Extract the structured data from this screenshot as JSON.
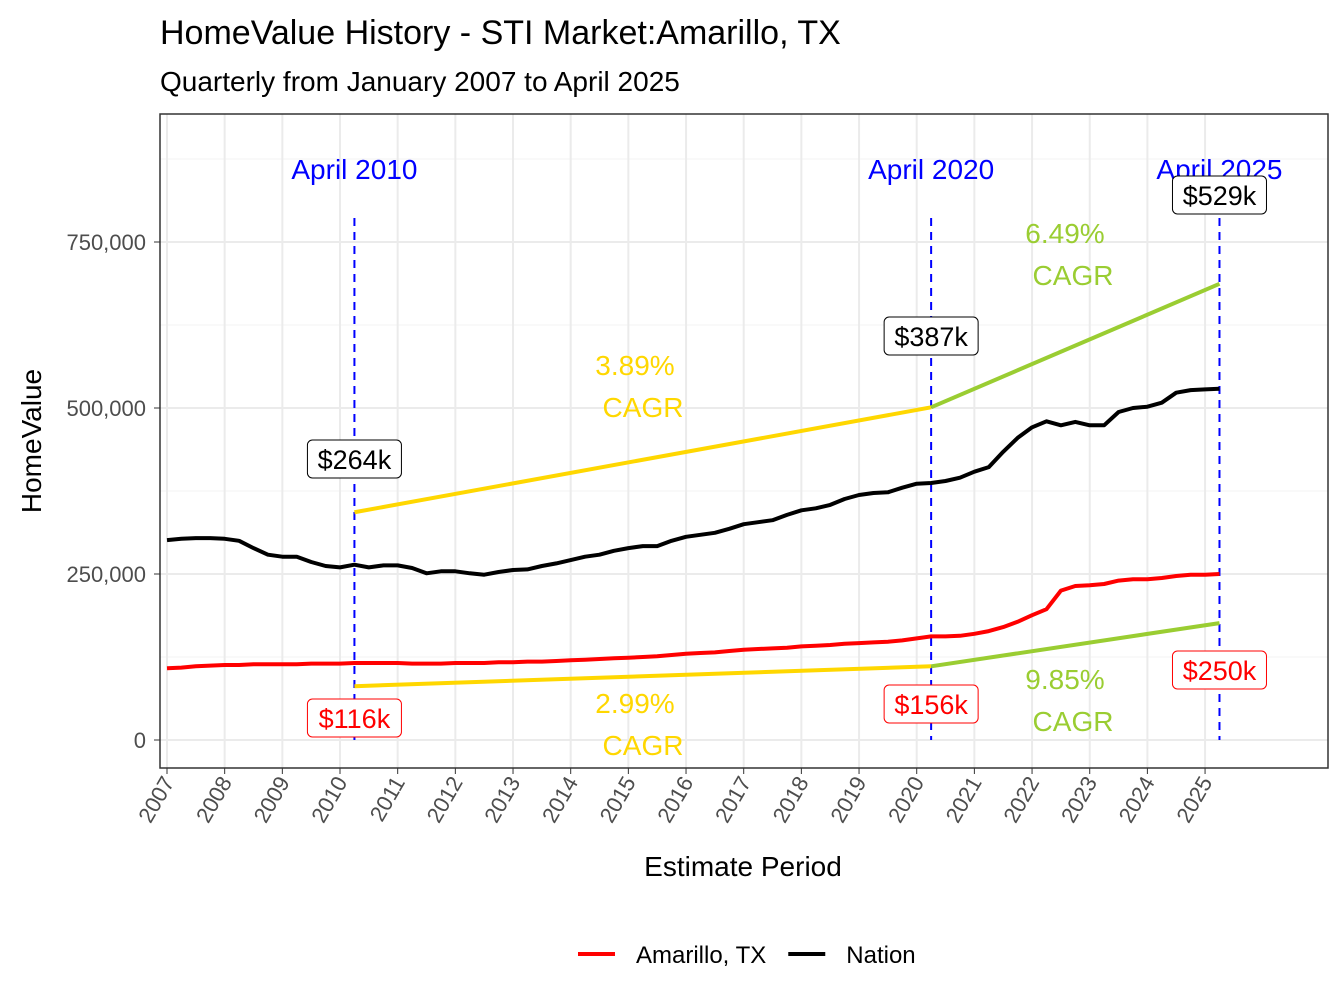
{
  "chart_data": {
    "type": "line",
    "title": "HomeValue History - STI Market:Amarillo, TX",
    "subtitle": "Quarterly from January 2007 to April 2025",
    "xlabel": "Estimate Period",
    "ylabel": "HomeValue",
    "ylim": [
      -40000,
      950000
    ],
    "xlim": [
      "2006-11",
      "2027-04"
    ],
    "yticks": [
      0,
      250000,
      500000,
      750000
    ],
    "ytick_labels": [
      "0",
      "250,000",
      "500,000",
      "750,000"
    ],
    "xtick_labels": [
      "2007",
      "2008",
      "2009",
      "2010",
      "2011",
      "2012",
      "2013",
      "2014",
      "2015",
      "2016",
      "2017",
      "2018",
      "2019",
      "2020",
      "2021",
      "2022",
      "2023",
      "2024",
      "2025"
    ],
    "grid": true,
    "legend": "bottom",
    "dates": [
      "2007-01",
      "2007-04",
      "2007-07",
      "2007-10",
      "2008-01",
      "2008-04",
      "2008-07",
      "2008-10",
      "2009-01",
      "2009-04",
      "2009-07",
      "2009-10",
      "2010-01",
      "2010-04",
      "2010-07",
      "2010-10",
      "2011-01",
      "2011-04",
      "2011-07",
      "2011-10",
      "2012-01",
      "2012-04",
      "2012-07",
      "2012-10",
      "2013-01",
      "2013-04",
      "2013-07",
      "2013-10",
      "2014-01",
      "2014-04",
      "2014-07",
      "2014-10",
      "2015-01",
      "2015-04",
      "2015-07",
      "2015-10",
      "2016-01",
      "2016-04",
      "2016-07",
      "2016-10",
      "2017-01",
      "2017-04",
      "2017-07",
      "2017-10",
      "2018-01",
      "2018-04",
      "2018-07",
      "2018-10",
      "2019-01",
      "2019-04",
      "2019-07",
      "2019-10",
      "2020-01",
      "2020-04",
      "2020-07",
      "2020-10",
      "2021-01",
      "2021-04",
      "2021-07",
      "2021-10",
      "2022-01",
      "2022-04",
      "2022-07",
      "2022-10",
      "2023-01",
      "2023-04",
      "2023-07",
      "2023-10",
      "2024-01",
      "2024-04",
      "2024-07",
      "2024-10",
      "2025-01",
      "2025-04"
    ],
    "series": [
      {
        "name": "Amarillo, TX",
        "color": "#FF0000",
        "values": [
          108000,
          109000,
          111000,
          112000,
          113000,
          113000,
          114000,
          114000,
          114000,
          114000,
          115000,
          115000,
          115000,
          116000,
          116000,
          116000,
          116000,
          115000,
          115000,
          115000,
          116000,
          116000,
          116000,
          117000,
          117000,
          118000,
          118000,
          119000,
          120000,
          121000,
          122000,
          123000,
          124000,
          125000,
          126000,
          128000,
          130000,
          131000,
          132000,
          134000,
          136000,
          137000,
          138000,
          139000,
          141000,
          142000,
          143000,
          145000,
          146000,
          147000,
          148000,
          150000,
          153000,
          156000,
          156000,
          157000,
          160000,
          164000,
          170000,
          178000,
          188000,
          197000,
          225000,
          232000,
          233000,
          235000,
          240000,
          242000,
          242000,
          244000,
          247000,
          249000,
          249000,
          250000
        ]
      },
      {
        "name": "Nation",
        "color": "#000000",
        "values": [
          301000,
          303000,
          304000,
          304000,
          303000,
          300000,
          289000,
          279000,
          276000,
          276000,
          268000,
          262000,
          260000,
          264000,
          260000,
          263000,
          263000,
          259000,
          251000,
          254000,
          254000,
          251000,
          249000,
          253000,
          256000,
          257000,
          262000,
          266000,
          271000,
          276000,
          279000,
          285000,
          289000,
          292000,
          292000,
          300000,
          306000,
          309000,
          312000,
          318000,
          325000,
          328000,
          331000,
          339000,
          346000,
          349000,
          354000,
          363000,
          369000,
          372000,
          373000,
          380000,
          386000,
          387000,
          390000,
          395000,
          404000,
          411000,
          434000,
          455000,
          471000,
          480000,
          474000,
          479000,
          474000,
          474000,
          494000,
          500000,
          502000,
          508000,
          523000,
          527000,
          528000,
          529000
        ]
      }
    ],
    "events": [
      {
        "date": "2010-04",
        "label": "April 2010",
        "color": "#0000FF"
      },
      {
        "date": "2020-04",
        "label": "April 2020",
        "color": "#0000FF"
      },
      {
        "date": "2025-04",
        "label": "April 2025",
        "color": "#0000FF"
      }
    ],
    "value_labels": [
      {
        "date": "2010-04",
        "text": "$264k",
        "series": "Nation",
        "color": "#000000",
        "value": 264000
      },
      {
        "date": "2020-04",
        "text": "$387k",
        "series": "Nation",
        "color": "#000000",
        "value": 387000
      },
      {
        "date": "2025-04",
        "text": "$529k",
        "series": "Nation",
        "color": "#000000",
        "value": 529000
      },
      {
        "date": "2010-04",
        "text": "$116k",
        "series": "Amarillo, TX",
        "color": "#FF0000",
        "value": 116000
      },
      {
        "date": "2020-04",
        "text": "$156k",
        "series": "Amarillo, TX",
        "color": "#FF0000",
        "value": 156000
      },
      {
        "date": "2025-04",
        "text": "$250k",
        "series": "Amarillo, TX",
        "color": "#FF0000",
        "value": 250000
      }
    ],
    "cagr_lines": [
      {
        "from": "2010-04",
        "to": "2020-04",
        "start": 343000,
        "end": 501000,
        "color": "#FFD700",
        "rate": "3.89%",
        "label": "CAGR"
      },
      {
        "from": "2020-04",
        "to": "2025-04",
        "start": 501000,
        "end": 687000,
        "color": "#9ACD32",
        "rate": "6.49%",
        "label": "CAGR"
      },
      {
        "from": "2010-04",
        "to": "2020-04",
        "start": 81000,
        "end": 111000,
        "color": "#FFD700",
        "rate": "2.99%",
        "label": "CAGR"
      },
      {
        "from": "2020-04",
        "to": "2025-04",
        "start": 111000,
        "end": 176000,
        "color": "#9ACD32",
        "rate": "9.85%",
        "label": "CAGR"
      }
    ]
  }
}
